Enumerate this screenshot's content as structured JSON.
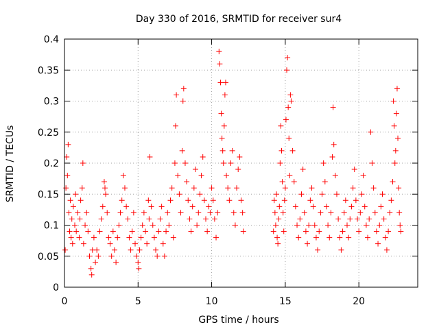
{
  "chart_data": {
    "type": "scatter",
    "title": "Day 330 of 2016, SRMTID for receiver sur4",
    "xlabel": "GPS time / hours",
    "ylabel": "SRMTID / TECUs",
    "xlim": [
      0,
      24
    ],
    "ylim": [
      0,
      0.4
    ],
    "xticks": [
      0,
      5,
      10,
      15,
      20
    ],
    "xtick_labels": [
      "0",
      "5",
      "10",
      "15",
      "20"
    ],
    "yticks": [
      0,
      0.05,
      0.1,
      0.15,
      0.2,
      0.25,
      0.3,
      0.35,
      0.4
    ],
    "ytick_labels": [
      "0",
      "0.05",
      "0.1",
      "0.15",
      "0.2",
      "0.25",
      "0.3",
      "0.35",
      "0.4"
    ],
    "grid": true,
    "marker": "+",
    "color": "#ff0000",
    "series": [
      {
        "name": "SRMTID",
        "points": [
          [
            0.05,
            0.06
          ],
          [
            0.1,
            0.16
          ],
          [
            0.15,
            0.21
          ],
          [
            0.2,
            0.18
          ],
          [
            0.25,
            0.23
          ],
          [
            0.3,
            0.12
          ],
          [
            0.35,
            0.09
          ],
          [
            0.4,
            0.14
          ],
          [
            0.45,
            0.08
          ],
          [
            0.5,
            0.11
          ],
          [
            0.55,
            0.07
          ],
          [
            0.6,
            0.13
          ],
          [
            0.7,
            0.1
          ],
          [
            0.75,
            0.15
          ],
          [
            0.8,
            0.09
          ],
          [
            0.9,
            0.12
          ],
          [
            1.0,
            0.08
          ],
          [
            1.05,
            0.11
          ],
          [
            1.1,
            0.14
          ],
          [
            1.2,
            0.16
          ],
          [
            1.25,
            0.2
          ],
          [
            1.3,
            0.07
          ],
          [
            1.4,
            0.1
          ],
          [
            1.5,
            0.12
          ],
          [
            1.6,
            0.09
          ],
          [
            1.7,
            0.05
          ],
          [
            1.8,
            0.03
          ],
          [
            1.85,
            0.02
          ],
          [
            1.9,
            0.06
          ],
          [
            2.0,
            0.08
          ],
          [
            2.1,
            0.04
          ],
          [
            2.2,
            0.06
          ],
          [
            2.3,
            0.05
          ],
          [
            2.4,
            0.09
          ],
          [
            2.5,
            0.11
          ],
          [
            2.6,
            0.13
          ],
          [
            2.7,
            0.17
          ],
          [
            2.75,
            0.16
          ],
          [
            2.8,
            0.15
          ],
          [
            2.9,
            0.12
          ],
          [
            3.0,
            0.08
          ],
          [
            3.1,
            0.07
          ],
          [
            3.2,
            0.05
          ],
          [
            3.3,
            0.09
          ],
          [
            3.4,
            0.06
          ],
          [
            3.5,
            0.04
          ],
          [
            3.6,
            0.08
          ],
          [
            3.7,
            0.1
          ],
          [
            3.8,
            0.12
          ],
          [
            3.9,
            0.14
          ],
          [
            4.0,
            0.18
          ],
          [
            4.1,
            0.16
          ],
          [
            4.2,
            0.13
          ],
          [
            4.3,
            0.11
          ],
          [
            4.4,
            0.08
          ],
          [
            4.5,
            0.06
          ],
          [
            4.6,
            0.09
          ],
          [
            4.7,
            0.12
          ],
          [
            4.8,
            0.07
          ],
          [
            4.9,
            0.05
          ],
          [
            5.0,
            0.04
          ],
          [
            5.05,
            0.03
          ],
          [
            5.1,
            0.06
          ],
          [
            5.2,
            0.08
          ],
          [
            5.3,
            0.1
          ],
          [
            5.4,
            0.12
          ],
          [
            5.5,
            0.09
          ],
          [
            5.6,
            0.07
          ],
          [
            5.7,
            0.14
          ],
          [
            5.75,
            0.11
          ],
          [
            5.8,
            0.21
          ],
          [
            5.9,
            0.13
          ],
          [
            6.0,
            0.1
          ],
          [
            6.1,
            0.08
          ],
          [
            6.2,
            0.06
          ],
          [
            6.3,
            0.05
          ],
          [
            6.4,
            0.09
          ],
          [
            6.5,
            0.11
          ],
          [
            6.6,
            0.13
          ],
          [
            6.7,
            0.07
          ],
          [
            6.8,
            0.05
          ],
          [
            6.9,
            0.09
          ],
          [
            7.0,
            0.12
          ],
          [
            7.1,
            0.1
          ],
          [
            7.2,
            0.14
          ],
          [
            7.3,
            0.16
          ],
          [
            7.4,
            0.08
          ],
          [
            7.5,
            0.2
          ],
          [
            7.55,
            0.26
          ],
          [
            7.6,
            0.31
          ],
          [
            7.7,
            0.18
          ],
          [
            7.8,
            0.15
          ],
          [
            7.9,
            0.12
          ],
          [
            8.0,
            0.22
          ],
          [
            8.05,
            0.3
          ],
          [
            8.1,
            0.32
          ],
          [
            8.2,
            0.2
          ],
          [
            8.3,
            0.17
          ],
          [
            8.4,
            0.14
          ],
          [
            8.5,
            0.11
          ],
          [
            8.6,
            0.09
          ],
          [
            8.7,
            0.13
          ],
          [
            8.8,
            0.16
          ],
          [
            8.9,
            0.19
          ],
          [
            9.0,
            0.1
          ],
          [
            9.1,
            0.12
          ],
          [
            9.2,
            0.15
          ],
          [
            9.3,
            0.18
          ],
          [
            9.4,
            0.21
          ],
          [
            9.5,
            0.14
          ],
          [
            9.6,
            0.11
          ],
          [
            9.7,
            0.09
          ],
          [
            9.8,
            0.13
          ],
          [
            9.9,
            0.12
          ],
          [
            10.0,
            0.16
          ],
          [
            10.1,
            0.14
          ],
          [
            10.2,
            0.11
          ],
          [
            10.3,
            0.08
          ],
          [
            10.4,
            0.12
          ],
          [
            10.5,
            0.38
          ],
          [
            10.55,
            0.36
          ],
          [
            10.6,
            0.33
          ],
          [
            10.65,
            0.28
          ],
          [
            10.7,
            0.24
          ],
          [
            10.75,
            0.22
          ],
          [
            10.8,
            0.2
          ],
          [
            10.85,
            0.26
          ],
          [
            10.9,
            0.31
          ],
          [
            10.95,
            0.33
          ],
          [
            11.0,
            0.18
          ],
          [
            11.1,
            0.16
          ],
          [
            11.2,
            0.14
          ],
          [
            11.3,
            0.2
          ],
          [
            11.4,
            0.22
          ],
          [
            11.5,
            0.12
          ],
          [
            11.6,
            0.1
          ],
          [
            11.7,
            0.16
          ],
          [
            11.8,
            0.19
          ],
          [
            11.9,
            0.21
          ],
          [
            12.0,
            0.14
          ],
          [
            12.1,
            0.12
          ],
          [
            12.15,
            0.09
          ],
          [
            14.2,
            0.09
          ],
          [
            14.25,
            0.14
          ],
          [
            14.3,
            0.12
          ],
          [
            14.35,
            0.1
          ],
          [
            14.4,
            0.15
          ],
          [
            14.45,
            0.08
          ],
          [
            14.5,
            0.07
          ],
          [
            14.55,
            0.11
          ],
          [
            14.6,
            0.13
          ],
          [
            14.65,
            0.2
          ],
          [
            14.7,
            0.26
          ],
          [
            14.75,
            0.22
          ],
          [
            14.8,
            0.17
          ],
          [
            14.85,
            0.12
          ],
          [
            14.9,
            0.09
          ],
          [
            14.95,
            0.14
          ],
          [
            15.0,
            0.16
          ],
          [
            15.05,
            0.27
          ],
          [
            15.1,
            0.35
          ],
          [
            15.15,
            0.37
          ],
          [
            15.2,
            0.29
          ],
          [
            15.25,
            0.24
          ],
          [
            15.3,
            0.18
          ],
          [
            15.35,
            0.31
          ],
          [
            15.4,
            0.3
          ],
          [
            15.5,
            0.22
          ],
          [
            15.6,
            0.17
          ],
          [
            15.7,
            0.13
          ],
          [
            15.8,
            0.1
          ],
          [
            15.9,
            0.08
          ],
          [
            16.0,
            0.11
          ],
          [
            16.1,
            0.15
          ],
          [
            16.2,
            0.19
          ],
          [
            16.3,
            0.12
          ],
          [
            16.4,
            0.09
          ],
          [
            16.5,
            0.07
          ],
          [
            16.6,
            0.1
          ],
          [
            16.7,
            0.14
          ],
          [
            16.8,
            0.16
          ],
          [
            16.9,
            0.13
          ],
          [
            17.0,
            0.1
          ],
          [
            17.1,
            0.08
          ],
          [
            17.2,
            0.06
          ],
          [
            17.3,
            0.09
          ],
          [
            17.4,
            0.12
          ],
          [
            17.5,
            0.15
          ],
          [
            17.6,
            0.2
          ],
          [
            17.7,
            0.17
          ],
          [
            17.8,
            0.13
          ],
          [
            17.9,
            0.1
          ],
          [
            18.0,
            0.08
          ],
          [
            18.1,
            0.12
          ],
          [
            18.2,
            0.21
          ],
          [
            18.25,
            0.29
          ],
          [
            18.3,
            0.23
          ],
          [
            18.4,
            0.18
          ],
          [
            18.5,
            0.15
          ],
          [
            18.6,
            0.11
          ],
          [
            18.7,
            0.08
          ],
          [
            18.8,
            0.06
          ],
          [
            18.9,
            0.09
          ],
          [
            19.0,
            0.12
          ],
          [
            19.1,
            0.14
          ],
          [
            19.2,
            0.1
          ],
          [
            19.3,
            0.08
          ],
          [
            19.4,
            0.11
          ],
          [
            19.5,
            0.13
          ],
          [
            19.6,
            0.16
          ],
          [
            19.7,
            0.19
          ],
          [
            19.8,
            0.14
          ],
          [
            19.9,
            0.11
          ],
          [
            20.0,
            0.09
          ],
          [
            20.1,
            0.12
          ],
          [
            20.2,
            0.15
          ],
          [
            20.3,
            0.18
          ],
          [
            20.4,
            0.13
          ],
          [
            20.5,
            0.1
          ],
          [
            20.6,
            0.08
          ],
          [
            20.7,
            0.11
          ],
          [
            20.8,
            0.25
          ],
          [
            20.9,
            0.2
          ],
          [
            21.0,
            0.16
          ],
          [
            21.1,
            0.12
          ],
          [
            21.2,
            0.09
          ],
          [
            21.3,
            0.07
          ],
          [
            21.4,
            0.1
          ],
          [
            21.5,
            0.13
          ],
          [
            21.6,
            0.15
          ],
          [
            21.7,
            0.11
          ],
          [
            21.8,
            0.08
          ],
          [
            21.9,
            0.06
          ],
          [
            22.0,
            0.09
          ],
          [
            22.1,
            0.12
          ],
          [
            22.2,
            0.14
          ],
          [
            22.3,
            0.17
          ],
          [
            22.35,
            0.3
          ],
          [
            22.4,
            0.26
          ],
          [
            22.45,
            0.2
          ],
          [
            22.5,
            0.22
          ],
          [
            22.55,
            0.28
          ],
          [
            22.6,
            0.32
          ],
          [
            22.65,
            0.24
          ],
          [
            22.7,
            0.16
          ],
          [
            22.75,
            0.12
          ],
          [
            22.8,
            0.1
          ],
          [
            22.85,
            0.09
          ]
        ]
      }
    ]
  }
}
